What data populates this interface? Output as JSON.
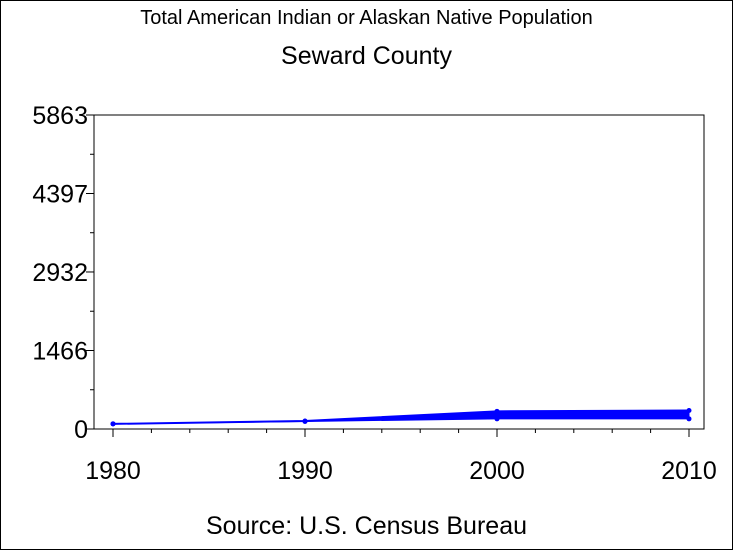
{
  "chart_data": {
    "type": "line",
    "title": "Total American Indian or Alaskan Native Population",
    "subtitle": "Seward County",
    "xlabel": "",
    "ylabel": "",
    "source": "Source: U.S. Census Bureau",
    "x_ticks": [
      "1980",
      "1990",
      "2000",
      "2010"
    ],
    "y_ticks": [
      "0",
      "1466",
      "2932",
      "4397",
      "5863"
    ],
    "xlim": [
      1980,
      2010
    ],
    "ylim": [
      0,
      5863
    ],
    "grid": false,
    "legend": "none",
    "series": [
      {
        "color": "#0000ff",
        "points": [
          {
            "x": 1980,
            "y": 95
          },
          {
            "x": 1990,
            "y": 150
          },
          {
            "x": 2000,
            "y": 330
          },
          {
            "x": 2010,
            "y": 345
          }
        ],
        "band_low": [
          {
            "x": 1980,
            "y": 95
          },
          {
            "x": 1990,
            "y": 140
          },
          {
            "x": 2000,
            "y": 190
          },
          {
            "x": 2010,
            "y": 190
          }
        ]
      }
    ]
  }
}
